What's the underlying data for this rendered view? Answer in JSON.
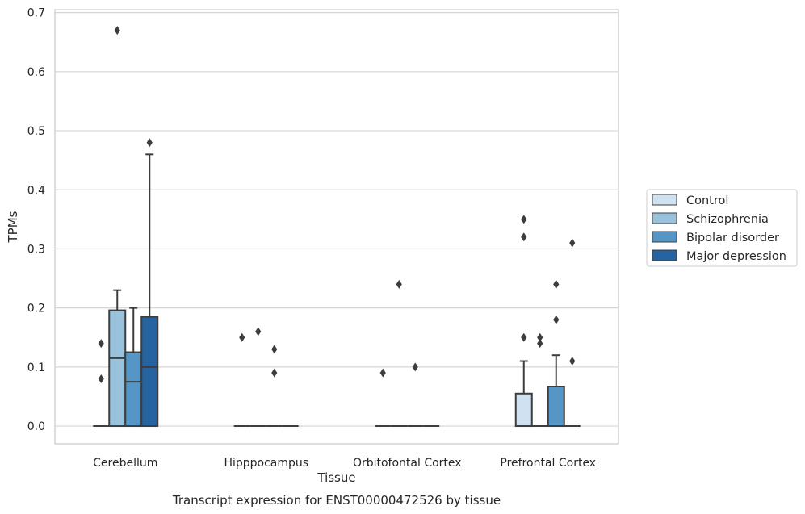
{
  "chart_data": {
    "type": "box",
    "caption": "Transcript expression for ENST00000472526 by tissue",
    "xlabel": "Tissue",
    "ylabel": "TPMs",
    "ylim": [
      -0.03,
      0.705
    ],
    "yticks": [
      0.0,
      0.1,
      0.2,
      0.3,
      0.4,
      0.5,
      0.6,
      0.7
    ],
    "ytick_labels": [
      "0.0",
      "0.1",
      "0.2",
      "0.3",
      "0.4",
      "0.5",
      "0.6",
      "0.7"
    ],
    "grid": true,
    "legend_position": "right",
    "categories": [
      "Cerebellum",
      "Hipppocampus",
      "Orbitofontal Cortex",
      "Prefrontal Cortex"
    ],
    "series": [
      {
        "name": "Control",
        "color": "#d0e1f2",
        "boxes": [
          {
            "q1": 0,
            "median": 0,
            "q3": 0,
            "whisker_low": 0,
            "whisker_high": 0,
            "outliers": [
              0.14,
              0.08
            ]
          },
          {
            "q1": 0,
            "median": 0,
            "q3": 0,
            "whisker_low": 0,
            "whisker_high": 0,
            "outliers": [
              0.15
            ]
          },
          {
            "q1": 0,
            "median": 0,
            "q3": 0,
            "whisker_low": 0,
            "whisker_high": 0,
            "outliers": [
              0.09
            ]
          },
          {
            "q1": 0,
            "median": 0,
            "q3": 0.055,
            "whisker_low": 0,
            "whisker_high": 0.11,
            "outliers": [
              0.35,
              0.32,
              0.15
            ]
          }
        ]
      },
      {
        "name": "Schizophrenia",
        "color": "#9ac2dd",
        "boxes": [
          {
            "q1": 0,
            "median": 0.115,
            "q3": 0.196,
            "whisker_low": 0,
            "whisker_high": 0.23,
            "outliers": [
              0.67
            ]
          },
          {
            "q1": 0,
            "median": 0,
            "q3": 0,
            "whisker_low": 0,
            "whisker_high": 0,
            "outliers": [
              0.16
            ]
          },
          {
            "q1": 0,
            "median": 0,
            "q3": 0,
            "whisker_low": 0,
            "whisker_high": 0,
            "outliers": [
              0.24
            ]
          },
          {
            "q1": 0,
            "median": 0,
            "q3": 0,
            "whisker_low": 0,
            "whisker_high": 0,
            "outliers": [
              0.15,
              0.14
            ]
          }
        ]
      },
      {
        "name": "Bipolar disorder",
        "color": "#5596c7",
        "boxes": [
          {
            "q1": 0,
            "median": 0.075,
            "q3": 0.125,
            "whisker_low": 0,
            "whisker_high": 0.2,
            "outliers": []
          },
          {
            "q1": 0,
            "median": 0,
            "q3": 0,
            "whisker_low": 0,
            "whisker_high": 0,
            "outliers": [
              0.13,
              0.09
            ]
          },
          {
            "q1": 0,
            "median": 0,
            "q3": 0,
            "whisker_low": 0,
            "whisker_high": 0,
            "outliers": [
              0.1
            ]
          },
          {
            "q1": 0,
            "median": 0,
            "q3": 0.067,
            "whisker_low": 0,
            "whisker_high": 0.12,
            "outliers": [
              0.24,
              0.18
            ]
          }
        ]
      },
      {
        "name": "Major depression",
        "color": "#2563a1",
        "boxes": [
          {
            "q1": 0,
            "median": 0.1,
            "q3": 0.185,
            "whisker_low": 0,
            "whisker_high": 0.46,
            "outliers": [
              0.48
            ]
          },
          {
            "q1": 0,
            "median": 0,
            "q3": 0,
            "whisker_low": 0,
            "whisker_high": 0,
            "outliers": []
          },
          {
            "q1": 0,
            "median": 0,
            "q3": 0,
            "whisker_low": 0,
            "whisker_high": 0,
            "outliers": []
          },
          {
            "q1": 0,
            "median": 0,
            "q3": 0,
            "whisker_low": 0,
            "whisker_high": 0,
            "outliers": [
              0.31,
              0.11
            ]
          }
        ]
      }
    ]
  }
}
